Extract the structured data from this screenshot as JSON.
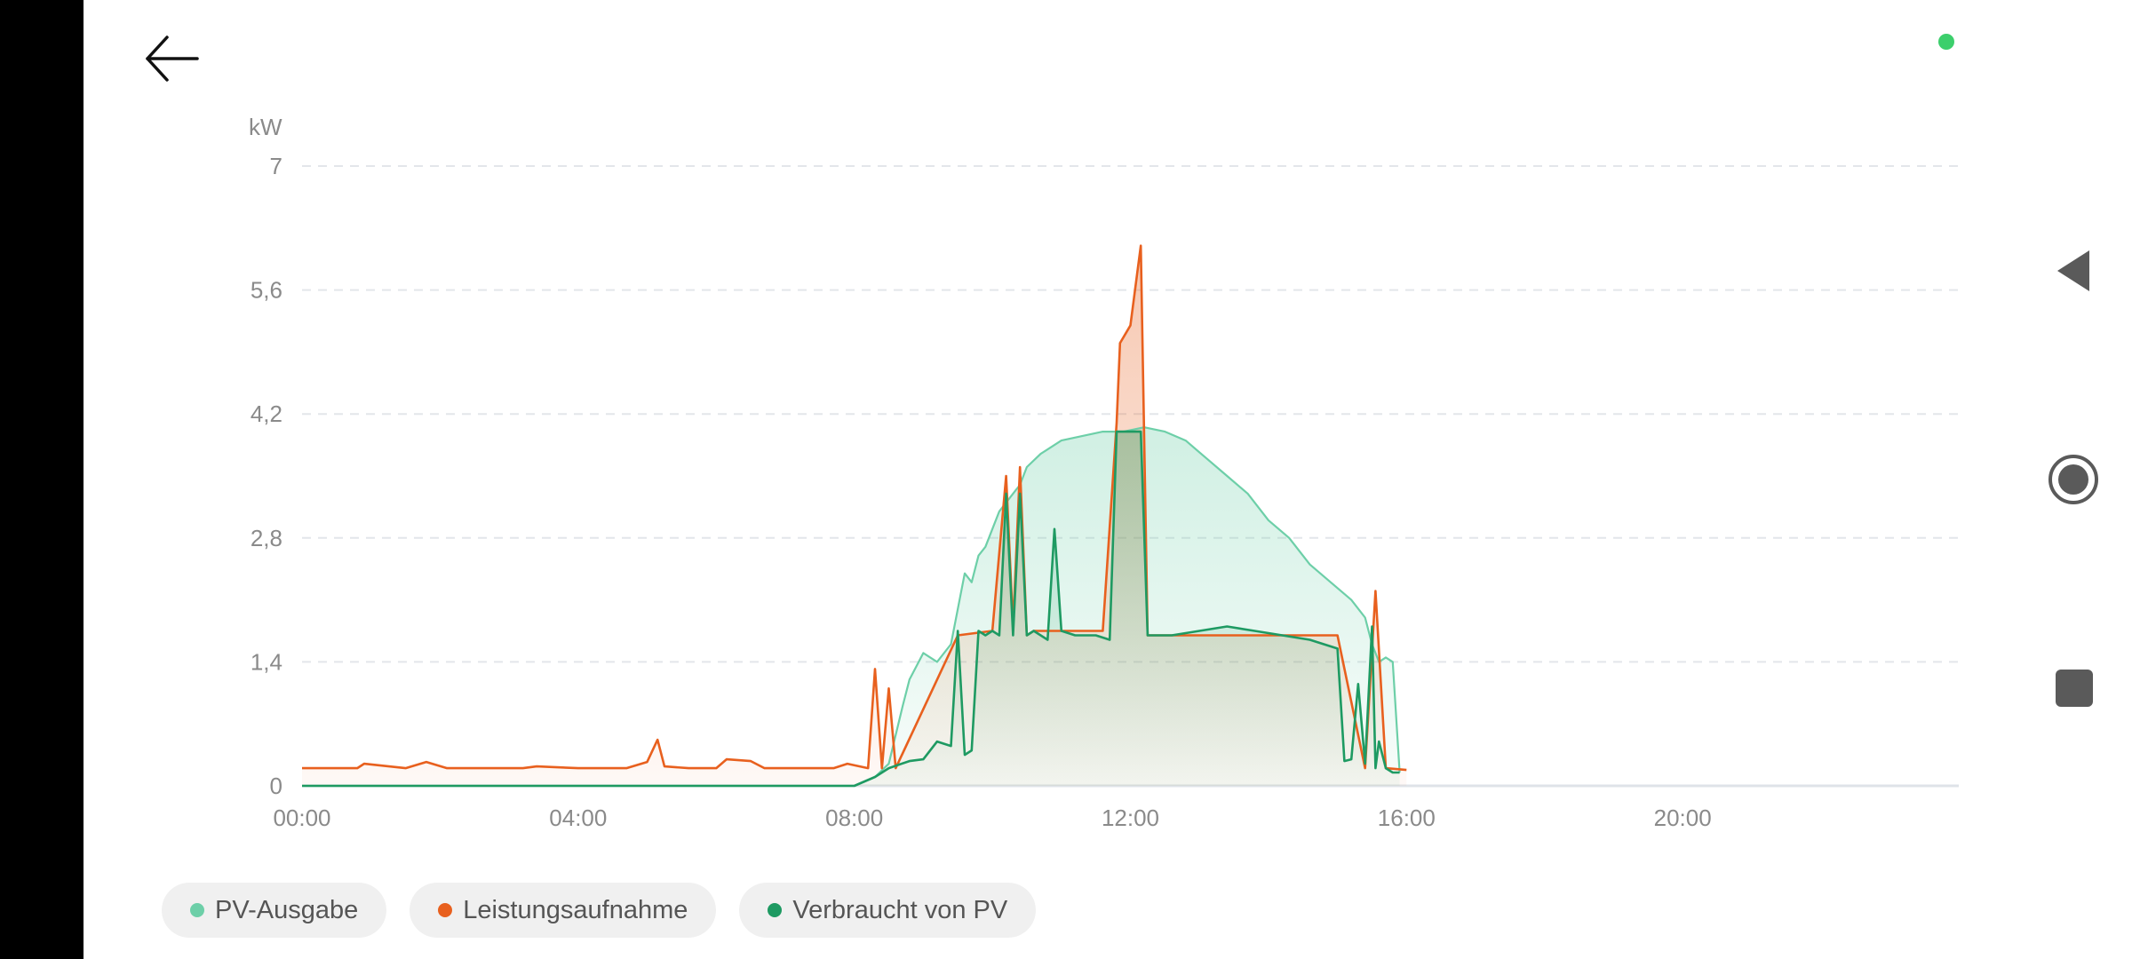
{
  "colors": {
    "pv": "#6dcfa8",
    "power": "#e8601e",
    "consumed": "#1e9a62",
    "grid": "#e3e6ea",
    "axis": "#8a8a8a",
    "status": "#3ccf6c",
    "nav": "#5a5a5a"
  },
  "icons": {
    "back": "arrow-left-icon",
    "nav_back": "triangle-left-icon",
    "nav_home": "circle-home-icon",
    "nav_recent": "square-recent-icon"
  },
  "unit": "kW",
  "legend": [
    {
      "label": "PV-Ausgabe",
      "color": "#6dcfa8"
    },
    {
      "label": "Leistungsaufnahme",
      "color": "#e8601e"
    },
    {
      "label": "Verbraucht von PV",
      "color": "#1e9a62"
    }
  ],
  "chart_data": {
    "type": "area",
    "ylabel": "kW",
    "ylim": [
      0,
      7
    ],
    "yticks": [
      "0",
      "1,4",
      "2,8",
      "4,2",
      "5,6",
      "7"
    ],
    "xlim": [
      0,
      24
    ],
    "xticks": [
      "00:00",
      "04:00",
      "08:00",
      "12:00",
      "16:00",
      "20:00"
    ],
    "grid": true,
    "legend_position": "bottom-left",
    "series": [
      {
        "name": "PV-Ausgabe",
        "x": [
          0,
          8.0,
          8.3,
          8.5,
          8.7,
          8.8,
          9.0,
          9.2,
          9.4,
          9.6,
          9.7,
          9.8,
          9.9,
          10.0,
          10.1,
          10.2,
          10.3,
          10.4,
          10.5,
          10.7,
          11.0,
          11.3,
          11.6,
          11.9,
          12.2,
          12.5,
          12.8,
          13.1,
          13.4,
          13.7,
          14.0,
          14.3,
          14.6,
          14.9,
          15.2,
          15.4,
          15.5,
          15.6,
          15.7,
          15.8,
          15.9
        ],
        "y": [
          0,
          0,
          0.1,
          0.25,
          0.9,
          1.2,
          1.5,
          1.4,
          1.6,
          2.4,
          2.3,
          2.6,
          2.7,
          2.9,
          3.1,
          3.2,
          3.3,
          3.4,
          3.6,
          3.75,
          3.9,
          3.95,
          4.0,
          4.0,
          4.05,
          4.0,
          3.9,
          3.7,
          3.5,
          3.3,
          3.0,
          2.8,
          2.5,
          2.3,
          2.1,
          1.9,
          1.6,
          1.4,
          1.45,
          1.4,
          0.15
        ]
      },
      {
        "name": "Leistungsaufnahme",
        "x": [
          0,
          0.8,
          0.9,
          1.5,
          1.8,
          2.1,
          3.2,
          3.4,
          4.0,
          4.7,
          5.0,
          5.15,
          5.25,
          5.6,
          6.0,
          6.15,
          6.5,
          6.7,
          7.1,
          7.7,
          7.9,
          8.2,
          8.3,
          8.4,
          8.5,
          8.6,
          9.5,
          10.0,
          10.2,
          10.3,
          10.4,
          10.5,
          10.6,
          11.6,
          11.8,
          11.85,
          12.0,
          12.15,
          12.25,
          12.5,
          13.0,
          15.0,
          15.4,
          15.55,
          15.7,
          16.0
        ],
        "y": [
          0.2,
          0.2,
          0.25,
          0.2,
          0.27,
          0.2,
          0.2,
          0.22,
          0.2,
          0.2,
          0.27,
          0.52,
          0.22,
          0.2,
          0.2,
          0.3,
          0.28,
          0.2,
          0.2,
          0.2,
          0.25,
          0.2,
          1.32,
          0.2,
          1.1,
          0.2,
          1.7,
          1.75,
          3.5,
          1.8,
          3.6,
          1.7,
          1.75,
          1.75,
          4.1,
          5.0,
          5.2,
          6.1,
          1.7,
          1.7,
          1.7,
          1.7,
          0.2,
          2.2,
          0.2,
          0.18
        ]
      },
      {
        "name": "Verbraucht von PV",
        "x": [
          0,
          8.0,
          8.3,
          8.5,
          8.8,
          9.0,
          9.2,
          9.4,
          9.5,
          9.6,
          9.7,
          9.8,
          9.9,
          10.0,
          10.1,
          10.2,
          10.3,
          10.4,
          10.5,
          10.6,
          10.8,
          10.9,
          11.0,
          11.2,
          11.5,
          11.7,
          11.8,
          11.85,
          12.0,
          12.15,
          12.25,
          12.6,
          13.0,
          13.4,
          13.8,
          14.2,
          14.6,
          15.0,
          15.1,
          15.2,
          15.3,
          15.4,
          15.5,
          15.55,
          15.6,
          15.7,
          15.8,
          15.9
        ],
        "y": [
          0,
          0,
          0.1,
          0.2,
          0.28,
          0.3,
          0.5,
          0.45,
          1.75,
          0.35,
          0.4,
          1.75,
          1.7,
          1.75,
          1.7,
          3.3,
          1.7,
          3.3,
          1.7,
          1.75,
          1.65,
          2.9,
          1.75,
          1.7,
          1.7,
          1.65,
          4.0,
          4.0,
          4.0,
          4.0,
          1.7,
          1.7,
          1.75,
          1.8,
          1.75,
          1.7,
          1.65,
          1.55,
          0.28,
          0.3,
          1.15,
          0.25,
          1.8,
          0.2,
          0.5,
          0.2,
          0.15,
          0.15
        ]
      }
    ]
  }
}
